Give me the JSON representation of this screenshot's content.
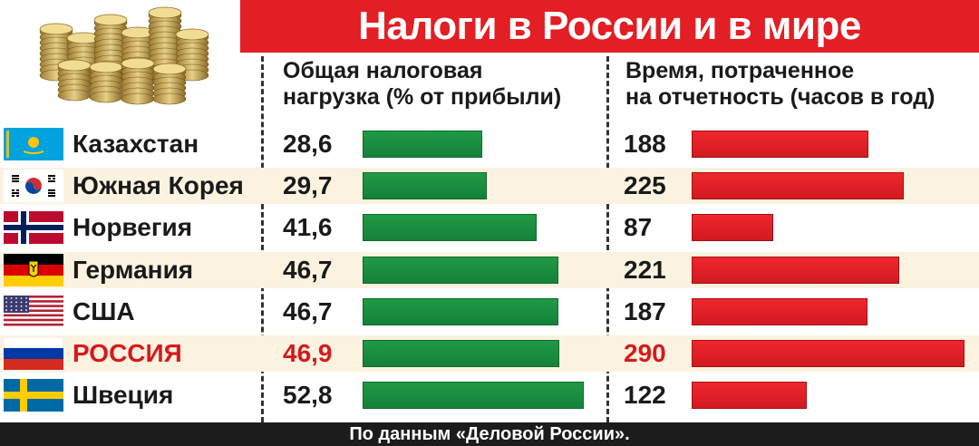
{
  "title": "Налоги в России и в мире",
  "colors": {
    "title_bg": "#e31e24",
    "green_bar": "#1a8f3f",
    "red_bar": "#e3222a",
    "highlight_text": "#d7191e",
    "row_band": "#fbf3df",
    "footer_bg": "#1c1c1c"
  },
  "icons": {
    "header_art": "coin-stacks-illustration"
  },
  "columns": {
    "tax": {
      "label_line1": "Общая налоговая",
      "label_line2": "нагрузка (% от прибыли)"
    },
    "time": {
      "label_line1": "Время, потраченное",
      "label_line2": "на отчетность (часов в год)"
    }
  },
  "rows": [
    {
      "country": "Казахстан",
      "flag": "kazakhstan-flag",
      "tax": "28,6",
      "hours": "188",
      "highlight": false
    },
    {
      "country": "Южная Корея",
      "flag": "south-korea-flag",
      "tax": "29,7",
      "hours": "225",
      "highlight": false
    },
    {
      "country": "Норвегия",
      "flag": "norway-flag",
      "tax": "41,6",
      "hours": "87",
      "highlight": false
    },
    {
      "country": "Германия",
      "flag": "germany-flag",
      "tax": "46,7",
      "hours": "221",
      "highlight": false
    },
    {
      "country": "США",
      "flag": "usa-flag",
      "tax": "46,7",
      "hours": "187",
      "highlight": false
    },
    {
      "country": "РОССИЯ",
      "flag": "russia-flag",
      "tax": "46,9",
      "hours": "290",
      "highlight": true
    },
    {
      "country": "Швеция",
      "flag": "sweden-flag",
      "tax": "52,8",
      "hours": "122",
      "highlight": false
    }
  ],
  "chart_data": [
    {
      "type": "bar",
      "orientation": "horizontal",
      "categories": [
        "Казахстан",
        "Южная Корея",
        "Норвегия",
        "Германия",
        "США",
        "РОССИЯ",
        "Швеция"
      ],
      "values": [
        28.6,
        29.7,
        41.6,
        46.7,
        46.7,
        46.9,
        52.8
      ],
      "title": "Общая налоговая нагрузка (% от прибыли)",
      "bar_color": "#1a8f3f"
    },
    {
      "type": "bar",
      "orientation": "horizontal",
      "categories": [
        "Казахстан",
        "Южная Корея",
        "Норвегия",
        "Германия",
        "США",
        "РОССИЯ",
        "Швеция"
      ],
      "values": [
        188,
        225,
        87,
        221,
        187,
        290,
        122
      ],
      "title": "Время, потраченное на отчетность (часов в год)",
      "bar_color": "#e3222a"
    }
  ],
  "footer": "По данным «Деловой России»."
}
